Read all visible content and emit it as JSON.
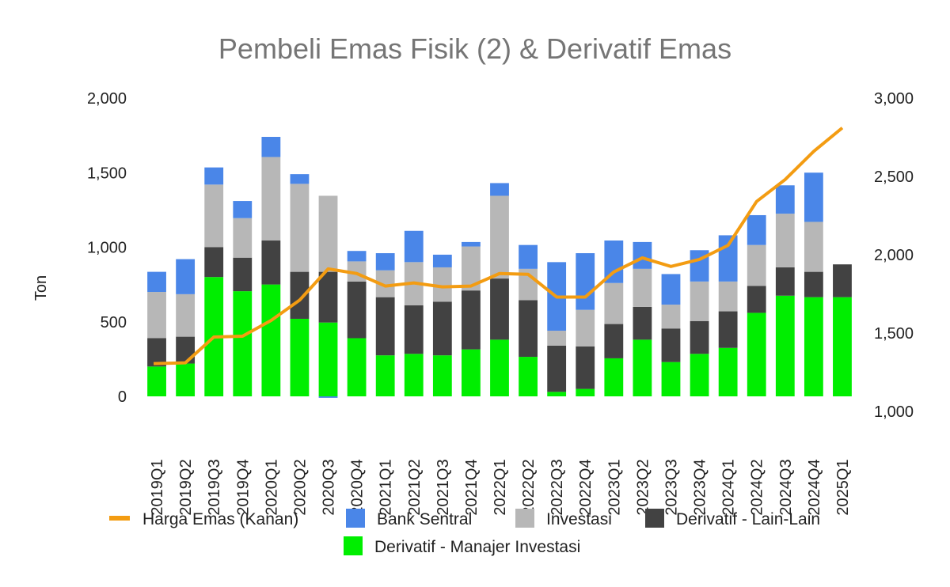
{
  "chart_data": {
    "type": "bar",
    "stacked": true,
    "title": "Pembeli Emas Fisik (2) & Derivatif Emas",
    "ylabel": "Ton",
    "ylim": [
      0,
      2000
    ],
    "yticks": [
      "0",
      "500",
      "1,000",
      "1,500",
      "2,000"
    ],
    "y2lim": [
      1000,
      3000
    ],
    "y2ticks": [
      "1,000",
      "1,500",
      "2,000",
      "2,500",
      "3,000"
    ],
    "grid": false,
    "legend_position": "bottom",
    "categories": [
      "2019Q1",
      "2019Q2",
      "2019Q3",
      "2019Q4",
      "2020Q1",
      "2020Q2",
      "2020Q3",
      "2020Q4",
      "2021Q1",
      "2021Q2",
      "2021Q3",
      "2021Q4",
      "2022Q1",
      "2022Q2",
      "2022Q3",
      "2022Q4",
      "2023Q1",
      "2023Q2",
      "2023Q3",
      "2023Q4",
      "2024Q1",
      "2024Q2",
      "2024Q3",
      "2024Q4",
      "2025Q1"
    ],
    "series": [
      {
        "name": "Derivatif - Manajer Investasi",
        "color": "#00ee00",
        "values": [
          200,
          220,
          800,
          705,
          750,
          520,
          495,
          390,
          275,
          285,
          275,
          315,
          380,
          265,
          30,
          50,
          255,
          380,
          230,
          285,
          325,
          560,
          675,
          665,
          665
        ]
      },
      {
        "name": "Derivatif - Lain-Lain",
        "color": "#424242",
        "values": [
          190,
          180,
          200,
          225,
          295,
          315,
          340,
          380,
          390,
          325,
          360,
          395,
          410,
          380,
          310,
          285,
          230,
          220,
          225,
          220,
          245,
          180,
          190,
          170,
          220
        ]
      },
      {
        "name": "Investasi",
        "color": "#b7b7b7",
        "values": [
          310,
          285,
          420,
          265,
          560,
          590,
          510,
          135,
          180,
          290,
          230,
          295,
          555,
          210,
          100,
          245,
          275,
          255,
          160,
          265,
          200,
          275,
          360,
          335,
          0
        ]
      },
      {
        "name": "Bank Sentral",
        "color": "#4a86e8",
        "values": [
          135,
          235,
          115,
          115,
          135,
          65,
          -10,
          70,
          115,
          210,
          85,
          30,
          85,
          160,
          460,
          380,
          285,
          180,
          205,
          210,
          310,
          200,
          190,
          330,
          0
        ]
      }
    ],
    "line": {
      "name": "Harga Emas (Kanan)",
      "color": "#f39c12",
      "axis": "right",
      "values": [
        1305,
        1310,
        1475,
        1480,
        1580,
        1710,
        1910,
        1880,
        1800,
        1820,
        1795,
        1800,
        1880,
        1875,
        1730,
        1730,
        1890,
        1980,
        1925,
        1970,
        2060,
        2340,
        2480,
        2660,
        2810
      ]
    }
  }
}
